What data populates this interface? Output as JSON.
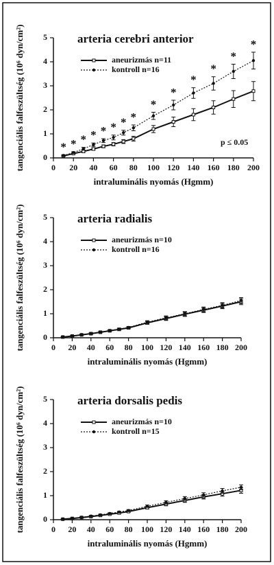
{
  "chart_data": [
    {
      "type": "line",
      "title": "arteria cerebri anterior",
      "xlabel": "intraluminális nyomás (Hgmm)",
      "ylabel": "tangenciális falfeszültség (10⁶ dyn/cm²)",
      "x": [
        10,
        20,
        30,
        40,
        50,
        60,
        70,
        80,
        100,
        120,
        140,
        160,
        180,
        200
      ],
      "series": [
        {
          "name": "aneurizmás n=11",
          "color": "#111111",
          "style": "solid",
          "marker": "square",
          "values": [
            0.08,
            0.18,
            0.27,
            0.37,
            0.48,
            0.57,
            0.68,
            0.8,
            1.2,
            1.5,
            1.8,
            2.1,
            2.45,
            2.78
          ],
          "errors": [
            0.02,
            0.03,
            0.05,
            0.05,
            0.06,
            0.07,
            0.08,
            0.1,
            0.15,
            0.2,
            0.25,
            0.28,
            0.35,
            0.4
          ]
        },
        {
          "name": "kontroll n=16",
          "color": "#111111",
          "style": "dotted",
          "marker": "circle",
          "values": [
            0.1,
            0.22,
            0.38,
            0.55,
            0.72,
            0.85,
            1.05,
            1.25,
            1.75,
            2.2,
            2.7,
            3.1,
            3.6,
            4.05
          ],
          "errors": [
            0.03,
            0.04,
            0.06,
            0.07,
            0.08,
            0.1,
            0.1,
            0.12,
            0.15,
            0.2,
            0.22,
            0.28,
            0.3,
            0.35
          ]
        }
      ],
      "significance_marker": "*",
      "annotation": "p ≤ 0.05",
      "xlim": [
        0,
        200
      ],
      "xticks": [
        0,
        20,
        40,
        60,
        80,
        100,
        120,
        140,
        160,
        180,
        200
      ],
      "ylim": [
        0,
        5
      ],
      "yticks": [
        0,
        1,
        2,
        3,
        4,
        5
      ]
    },
    {
      "type": "line",
      "title": "arteria  radialis",
      "xlabel": "intraluminális nyomás (Hgmm)",
      "ylabel": "tangenciális falfeszültség (10⁶ dyn/cm²)",
      "x": [
        10,
        20,
        30,
        40,
        50,
        60,
        70,
        80,
        100,
        120,
        140,
        160,
        180,
        200
      ],
      "series": [
        {
          "name": "aneurizmás n=10",
          "color": "#111111",
          "style": "solid",
          "marker": "square",
          "values": [
            0.03,
            0.07,
            0.12,
            0.17,
            0.23,
            0.29,
            0.35,
            0.41,
            0.62,
            0.8,
            0.98,
            1.15,
            1.32,
            1.5
          ],
          "errors": [
            0.01,
            0.02,
            0.02,
            0.03,
            0.03,
            0.03,
            0.04,
            0.04,
            0.06,
            0.08,
            0.09,
            0.1,
            0.11,
            0.12
          ]
        },
        {
          "name": "kontroll n=16",
          "color": "#111111",
          "style": "dotted",
          "marker": "circle",
          "values": [
            0.04,
            0.08,
            0.13,
            0.18,
            0.24,
            0.3,
            0.36,
            0.43,
            0.65,
            0.83,
            1.0,
            1.18,
            1.35,
            1.55
          ],
          "errors": [
            0.01,
            0.02,
            0.02,
            0.03,
            0.03,
            0.03,
            0.04,
            0.04,
            0.06,
            0.08,
            0.09,
            0.1,
            0.11,
            0.12
          ]
        }
      ],
      "xlim": [
        0,
        200
      ],
      "xticks": [
        0,
        20,
        40,
        60,
        80,
        100,
        120,
        140,
        160,
        180,
        200
      ],
      "ylim": [
        0,
        5
      ],
      "yticks": [
        0,
        1,
        2,
        3,
        4,
        5
      ]
    },
    {
      "type": "line",
      "title": "arteria  dorsalis  pedis",
      "xlabel": "intraluminális nyomás (Hgmm)",
      "ylabel": "tangenciális falfeszültség (10⁶ dyn/cm²)",
      "x": [
        10,
        20,
        30,
        40,
        50,
        60,
        70,
        80,
        100,
        120,
        140,
        160,
        180,
        200
      ],
      "series": [
        {
          "name": "aneurizmás  n=10",
          "color": "#111111",
          "style": "solid",
          "marker": "square",
          "values": [
            0.02,
            0.05,
            0.09,
            0.13,
            0.18,
            0.23,
            0.28,
            0.34,
            0.5,
            0.65,
            0.8,
            0.95,
            1.08,
            1.22
          ],
          "errors": [
            0.01,
            0.01,
            0.02,
            0.02,
            0.03,
            0.03,
            0.03,
            0.04,
            0.05,
            0.07,
            0.08,
            0.09,
            0.1,
            0.12
          ]
        },
        {
          "name": "kontroll n=15",
          "color": "#111111",
          "style": "dotted",
          "marker": "circle",
          "values": [
            0.03,
            0.06,
            0.1,
            0.15,
            0.2,
            0.26,
            0.32,
            0.38,
            0.56,
            0.72,
            0.88,
            1.03,
            1.2,
            1.35
          ],
          "errors": [
            0.01,
            0.01,
            0.02,
            0.02,
            0.03,
            0.03,
            0.03,
            0.04,
            0.05,
            0.07,
            0.08,
            0.09,
            0.1,
            0.1
          ]
        }
      ],
      "xlim": [
        0,
        200
      ],
      "xticks": [
        0,
        20,
        40,
        60,
        80,
        100,
        120,
        140,
        160,
        180,
        200
      ],
      "ylim": [
        0,
        5
      ],
      "yticks": [
        0,
        1,
        2,
        3,
        4,
        5
      ]
    }
  ]
}
